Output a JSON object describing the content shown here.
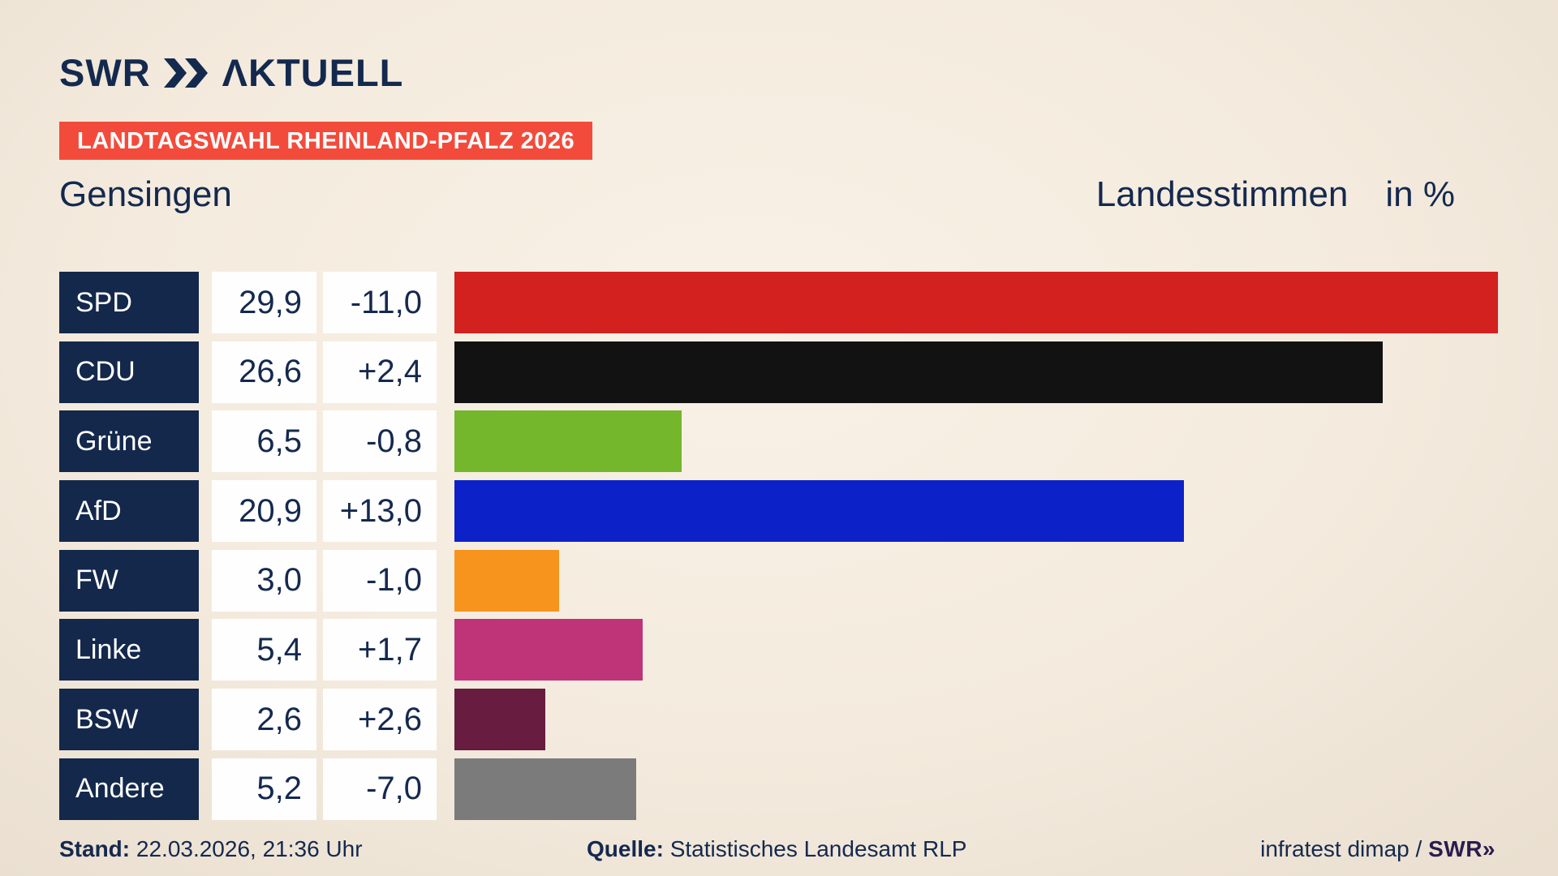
{
  "logo": {
    "brand": "SWR",
    "suffix": "ΛKTUELL"
  },
  "banner": {
    "text": "LANDTAGSWAHL RHEINLAND-PFALZ 2026",
    "bg_color": "#f34b3b"
  },
  "header": {
    "title": "Gensingen",
    "measure_label": "Landesstimmen",
    "unit_label": "in %"
  },
  "colors": {
    "navy": "#14294e",
    "label_box": "#13284b",
    "banner_red": "#f34b3b",
    "background_beige": "#f4ebde"
  },
  "chart_data": {
    "type": "bar",
    "title": "Landtagswahl Rheinland-Pfalz 2026 — Gensingen, Landesstimmen in %",
    "categories": [
      "SPD",
      "CDU",
      "Grüne",
      "AfD",
      "FW",
      "Linke",
      "BSW",
      "Andere"
    ],
    "values": [
      29.9,
      26.6,
      6.5,
      20.9,
      3.0,
      5.4,
      2.6,
      5.2
    ],
    "diffs": [
      -11.0,
      2.4,
      -0.8,
      13.0,
      -1.0,
      1.7,
      2.6,
      -7.0
    ],
    "bar_colors": [
      "#d2211f",
      "#121212",
      "#74b62c",
      "#0c22c8",
      "#f7941e",
      "#bf3378",
      "#681c40",
      "#7b7b7b"
    ],
    "xlabel": "",
    "ylabel": "",
    "xlim": [
      0,
      31.6
    ],
    "grid": false,
    "legend": false,
    "orientation": "horizontal"
  },
  "rows": [
    {
      "party": "SPD",
      "value": "29,9",
      "diff": "-11,0",
      "pct": 29.9,
      "color": "#d2211f"
    },
    {
      "party": "CDU",
      "value": "26,6",
      "diff": "+2,4",
      "pct": 26.6,
      "color": "#121212"
    },
    {
      "party": "Grüne",
      "value": "6,5",
      "diff": "-0,8",
      "pct": 6.5,
      "color": "#74b62c"
    },
    {
      "party": "AfD",
      "value": "20,9",
      "diff": "+13,0",
      "pct": 20.9,
      "color": "#0c22c8"
    },
    {
      "party": "FW",
      "value": "3,0",
      "diff": "-1,0",
      "pct": 3.0,
      "color": "#f7941e"
    },
    {
      "party": "Linke",
      "value": "5,4",
      "diff": "+1,7",
      "pct": 5.4,
      "color": "#bf3378"
    },
    {
      "party": "BSW",
      "value": "2,6",
      "diff": "+2,6",
      "pct": 2.6,
      "color": "#681c40"
    },
    {
      "party": "Andere",
      "value": "5,2",
      "diff": "-7,0",
      "pct": 5.2,
      "color": "#7b7b7b"
    }
  ],
  "footer": {
    "stand_label": "Stand:",
    "stand_value": " 22.03.2026, 21:36 Uhr",
    "quelle_label": "Quelle:",
    "quelle_value": " Statistisches Landesamt RLP",
    "credit_text": "infratest dimap / ",
    "credit_brand": "SWR»"
  }
}
